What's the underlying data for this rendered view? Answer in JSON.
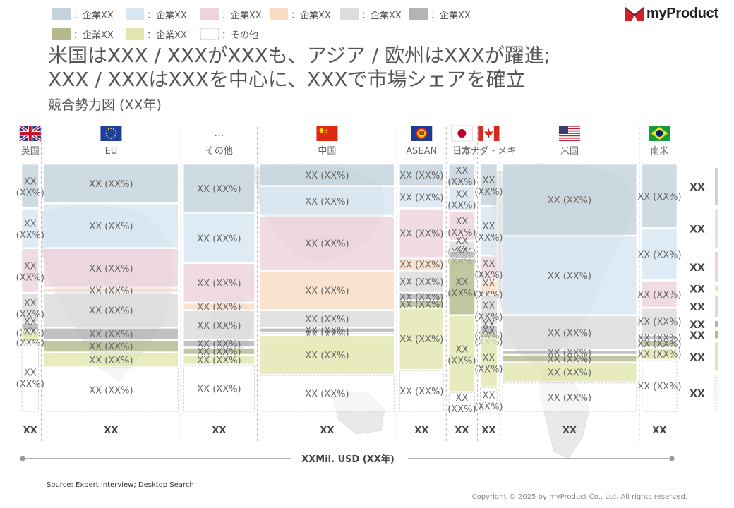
{
  "brand": {
    "name": "myProduct"
  },
  "legend": [
    {
      "label": "：企業XX",
      "color": "#c5d3dd",
      "border": "#c5d3dd"
    },
    {
      "label": "：企業XX",
      "color": "#d7e6f1",
      "border": "#d7e6f1"
    },
    {
      "label": "：企業XX",
      "color": "#eed3dc",
      "border": "#eed3dc"
    },
    {
      "label": "：企業XX",
      "color": "#f8dcc3",
      "border": "#f8dcc3"
    },
    {
      "label": "：企業XX",
      "color": "#dcdcdc",
      "border": "#dcdcdc"
    },
    {
      "label": "：企業XX",
      "color": "#b4b4b4",
      "border": "#b4b4b4"
    },
    {
      "label": "：企業XX",
      "color": "#b5b98c",
      "border": "#b5b98c"
    },
    {
      "label": "：企業XX",
      "color": "#e2e6ae",
      "border": "#e2e6ae"
    },
    {
      "label": "：その他",
      "color": "#ffffff",
      "border": "#d0d0d0"
    }
  ],
  "title": {
    "line1": "米国はXXX / XXXがXXXも、アジア / 欧州はXXXが躍進;",
    "line2": "XXX / XXXはXXXを中心に、XXXで市場シェアを確立",
    "subtitle": "競合勢力図 (XX年)"
  },
  "chart_data": {
    "type": "marimekko",
    "segment_colors": [
      "#c5d3dd",
      "#d7e6f1",
      "#eed3dc",
      "#f8dcc3",
      "#dcdcdc",
      "#b4b4b4",
      "#b5b98c",
      "#e2e6ae",
      "#ffffff"
    ],
    "columns": [
      {
        "name": "英国",
        "flag": "uk",
        "total": "XX",
        "width": 2,
        "shares": [
          18,
          16,
          18,
          0,
          12,
          3,
          0,
          5,
          28
        ]
      },
      {
        "name": "EU",
        "flag": "eu",
        "total": "XX",
        "width": 15,
        "shares": [
          16,
          18,
          16,
          2,
          14,
          5,
          5,
          6,
          18
        ]
      },
      {
        "name": "その他",
        "flag": "other",
        "total": "XX",
        "width": 8,
        "shares": [
          20,
          20,
          16,
          3,
          12,
          3,
          3,
          4,
          19
        ]
      },
      {
        "name": "中国",
        "flag": "china",
        "total": "XX",
        "width": 15,
        "shares": [
          9,
          12,
          22,
          16,
          7,
          2,
          1,
          16,
          15
        ]
      },
      {
        "name": "ASEAN",
        "flag": "asean",
        "total": "XX",
        "width": 5,
        "shares": [
          9,
          9,
          20,
          5,
          9,
          3,
          3,
          25,
          17
        ]
      },
      {
        "name": "日本",
        "flag": "japan",
        "total": "XX",
        "width": 3,
        "shares": [
          9,
          10,
          12,
          0,
          4,
          3,
          23,
          31,
          8
        ]
      },
      {
        "name": "カナダ・メキ",
        "flag": "canada",
        "total": "XX",
        "width": 2,
        "shares": [
          17,
          20,
          10,
          6,
          12,
          3,
          2,
          20,
          10
        ]
      },
      {
        "name": "米国",
        "flag": "usa",
        "total": "XX",
        "width": 15,
        "shares": [
          29,
          32,
          0,
          0,
          14,
          2,
          3,
          8,
          12
        ]
      },
      {
        "name": "南米",
        "flag": "brazil",
        "total": "XX",
        "width": 4,
        "shares": [
          26,
          21,
          11,
          0,
          11,
          2,
          3,
          5,
          21
        ]
      }
    ],
    "segment_label": "XX (XX%)",
    "right_labels": [
      "XX",
      "XX",
      "XX",
      "XX",
      "XX",
      "XX",
      "XX",
      "XX",
      "XX"
    ],
    "axis_label": "XXMil. USD (XX年)"
  },
  "footer": {
    "source": "Source: Expert Interview; Desktop Search",
    "copyright": "Copyright © 2025 by myProduct Co., Ltd.  All rights reserved."
  }
}
